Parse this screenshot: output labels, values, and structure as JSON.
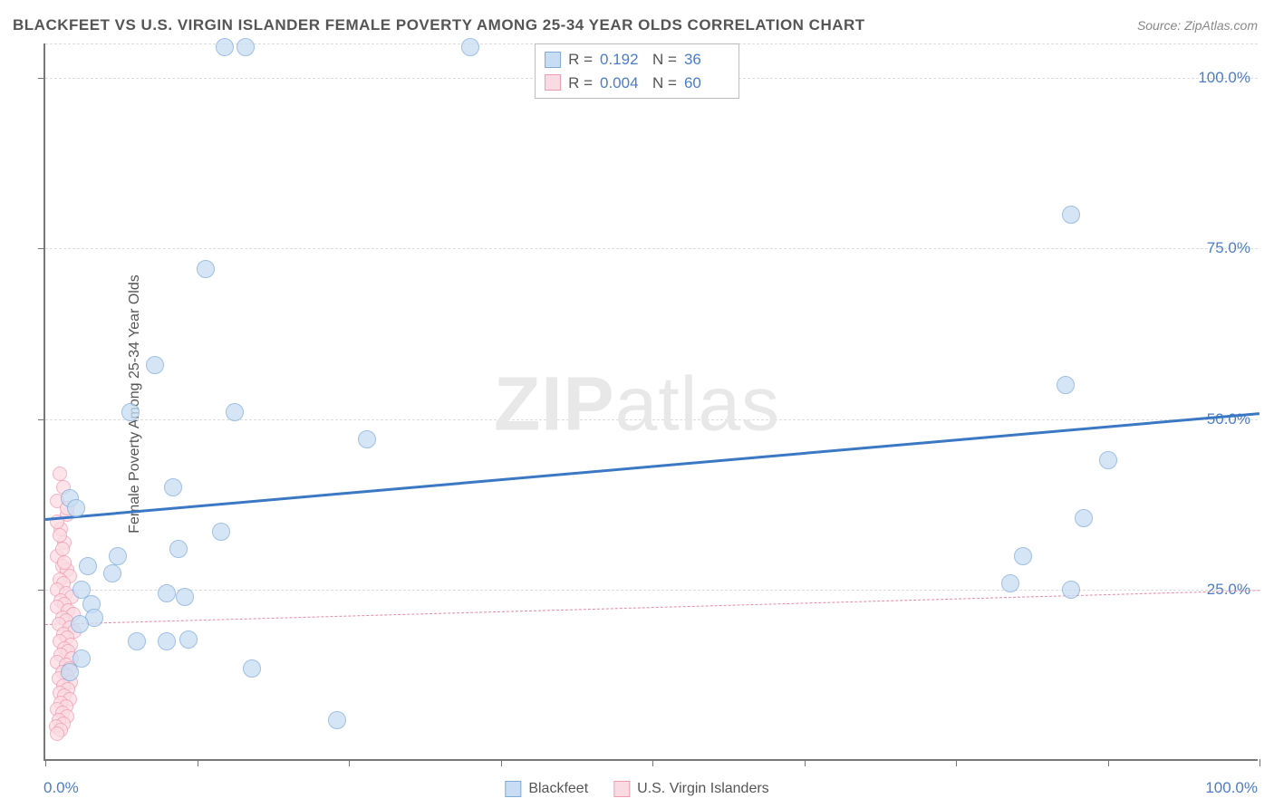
{
  "title": "BLACKFEET VS U.S. VIRGIN ISLANDER FEMALE POVERTY AMONG 25-34 YEAR OLDS CORRELATION CHART",
  "source": "Source: ZipAtlas.com",
  "ylabel": "Female Poverty Among 25-34 Year Olds",
  "watermark_bold": "ZIP",
  "watermark_rest": "atlas",
  "chart": {
    "type": "scatter",
    "xlim": [
      0,
      100
    ],
    "ylim": [
      0,
      105
    ],
    "background_color": "#ffffff",
    "grid_color": "#dddddd",
    "axis_color": "#777777",
    "axis_label_color": "#4a7ec9",
    "title_color": "#555555",
    "title_fontsize": 17,
    "label_fontsize": 16,
    "tick_fontsize": 17,
    "x_tick_positions": [
      0,
      12.5,
      25,
      37.5,
      50,
      62.5,
      75,
      87.5,
      100
    ],
    "y_grid_positions": [
      25,
      50,
      75,
      100,
      105
    ],
    "y_tick_labels": [
      {
        "pos": 25,
        "label": "25.0%"
      },
      {
        "pos": 50,
        "label": "50.0%"
      },
      {
        "pos": 75,
        "label": "75.0%"
      },
      {
        "pos": 100,
        "label": "100.0%"
      }
    ],
    "x_min_label": "0.0%",
    "x_max_label": "100.0%",
    "series": [
      {
        "name": "Blackfeet",
        "color_fill": "#c8ddf3",
        "color_stroke": "#7fabd9",
        "marker_radius": 10,
        "fill_opacity": 0.75,
        "r_value": "0.192",
        "n_value": "36",
        "trendline": {
          "y_start": 35.5,
          "y_end": 51,
          "color": "#3b78c4",
          "width": 3,
          "dash": "solid"
        },
        "points": [
          [
            14.8,
            104.5
          ],
          [
            16.5,
            104.5
          ],
          [
            13.2,
            72
          ],
          [
            84.5,
            80
          ],
          [
            9.0,
            58
          ],
          [
            84.0,
            55
          ],
          [
            7.0,
            51
          ],
          [
            15.6,
            51
          ],
          [
            26.5,
            47
          ],
          [
            87.5,
            44
          ],
          [
            10.5,
            40
          ],
          [
            85.5,
            35.5
          ],
          [
            14.5,
            33.5
          ],
          [
            2.0,
            38.5
          ],
          [
            2.5,
            37
          ],
          [
            6.0,
            30
          ],
          [
            11.0,
            31
          ],
          [
            80.5,
            30
          ],
          [
            5.5,
            27.5
          ],
          [
            3.5,
            28.5
          ],
          [
            3.0,
            25
          ],
          [
            10.0,
            24.5
          ],
          [
            11.5,
            24
          ],
          [
            79.5,
            26
          ],
          [
            84.5,
            25
          ],
          [
            3.8,
            23
          ],
          [
            4.0,
            21
          ],
          [
            2.8,
            20
          ],
          [
            7.5,
            17.5
          ],
          [
            10.0,
            17.5
          ],
          [
            11.8,
            17.8
          ],
          [
            17.0,
            13.5
          ],
          [
            3.0,
            15
          ],
          [
            2.0,
            13
          ],
          [
            24.0,
            6
          ],
          [
            35.0,
            104.5
          ]
        ]
      },
      {
        "name": "U.S. Virgin Islanders",
        "color_fill": "#fbdbe3",
        "color_stroke": "#f29bb0",
        "marker_radius": 8,
        "fill_opacity": 0.75,
        "r_value": "0.004",
        "n_value": "60",
        "trendline": {
          "y_start": 20,
          "y_end": 25,
          "color": "#e48aa0",
          "width": 1.5,
          "dash": "dashed"
        },
        "points": [
          [
            1.2,
            42
          ],
          [
            1.5,
            40
          ],
          [
            1.0,
            38
          ],
          [
            1.8,
            36
          ],
          [
            1.3,
            34
          ],
          [
            1.6,
            32
          ],
          [
            1.0,
            30
          ],
          [
            1.4,
            28.5
          ],
          [
            1.8,
            28
          ],
          [
            2.0,
            27
          ],
          [
            1.2,
            26.5
          ],
          [
            1.5,
            26
          ],
          [
            1.0,
            25
          ],
          [
            1.7,
            24.5
          ],
          [
            2.2,
            24
          ],
          [
            1.3,
            23.5
          ],
          [
            1.6,
            23
          ],
          [
            1.0,
            22.5
          ],
          [
            1.9,
            22
          ],
          [
            2.3,
            21.5
          ],
          [
            1.4,
            21
          ],
          [
            1.7,
            20.5
          ],
          [
            1.1,
            20
          ],
          [
            2.0,
            19.5
          ],
          [
            2.4,
            19
          ],
          [
            1.5,
            18.5
          ],
          [
            1.8,
            18
          ],
          [
            1.2,
            17.5
          ],
          [
            2.1,
            17
          ],
          [
            1.6,
            16.5
          ],
          [
            1.9,
            16
          ],
          [
            1.3,
            15.5
          ],
          [
            2.2,
            15
          ],
          [
            1.0,
            14.5
          ],
          [
            1.7,
            14
          ],
          [
            2.0,
            13.5
          ],
          [
            1.4,
            13
          ],
          [
            1.8,
            12.5
          ],
          [
            1.1,
            12
          ],
          [
            2.1,
            11.5
          ],
          [
            1.5,
            11
          ],
          [
            1.9,
            10.5
          ],
          [
            1.2,
            10
          ],
          [
            1.6,
            9.5
          ],
          [
            2.0,
            9
          ],
          [
            1.3,
            8.5
          ],
          [
            1.7,
            8
          ],
          [
            1.0,
            7.5
          ],
          [
            1.4,
            7
          ],
          [
            1.8,
            6.5
          ],
          [
            1.1,
            6
          ],
          [
            1.5,
            5.5
          ],
          [
            0.9,
            5
          ],
          [
            1.3,
            4.5
          ],
          [
            1.0,
            4
          ],
          [
            1.2,
            33
          ],
          [
            1.6,
            29
          ],
          [
            1.0,
            35
          ],
          [
            1.4,
            31
          ],
          [
            1.8,
            37
          ]
        ]
      }
    ]
  },
  "stats_legend": {
    "r_label": "R =",
    "n_label": "N ="
  },
  "bottom_legend": [
    {
      "label": "Blackfeet",
      "fill": "#c8ddf3",
      "stroke": "#7fabd9"
    },
    {
      "label": "U.S. Virgin Islanders",
      "fill": "#fbdbe3",
      "stroke": "#f29bb0"
    }
  ]
}
